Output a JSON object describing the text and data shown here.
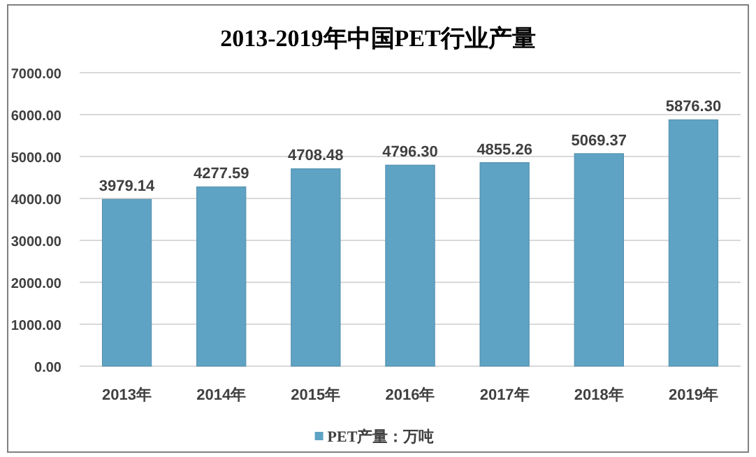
{
  "chart_data": {
    "type": "bar",
    "title": "2013-2019年中国PET行业产量",
    "categories": [
      "2013年",
      "2014年",
      "2015年",
      "2016年",
      "2017年",
      "2018年",
      "2019年"
    ],
    "series": [
      {
        "name": "PET产量：万吨",
        "color": "#5fa3c4",
        "values": [
          3979.14,
          4277.59,
          4708.48,
          4796.3,
          4855.26,
          5069.37,
          5876.3
        ],
        "value_labels": [
          "3979.14",
          "4277.59",
          "4708.48",
          "4796.30",
          "4855.26",
          "5069.37",
          "5876.30"
        ]
      }
    ],
    "ylim": [
      0,
      7000
    ],
    "yticks": [
      {
        "value": 0,
        "label": "0.00"
      },
      {
        "value": 1000,
        "label": "1000.00"
      },
      {
        "value": 2000,
        "label": "2000.00"
      },
      {
        "value": 3000,
        "label": "3000.00"
      },
      {
        "value": 4000,
        "label": "4000.00"
      },
      {
        "value": 5000,
        "label": "5000.00"
      },
      {
        "value": 6000,
        "label": "6000.00"
      },
      {
        "value": 7000,
        "label": "7000.00"
      }
    ],
    "grid": "y",
    "legend": "bottom"
  }
}
